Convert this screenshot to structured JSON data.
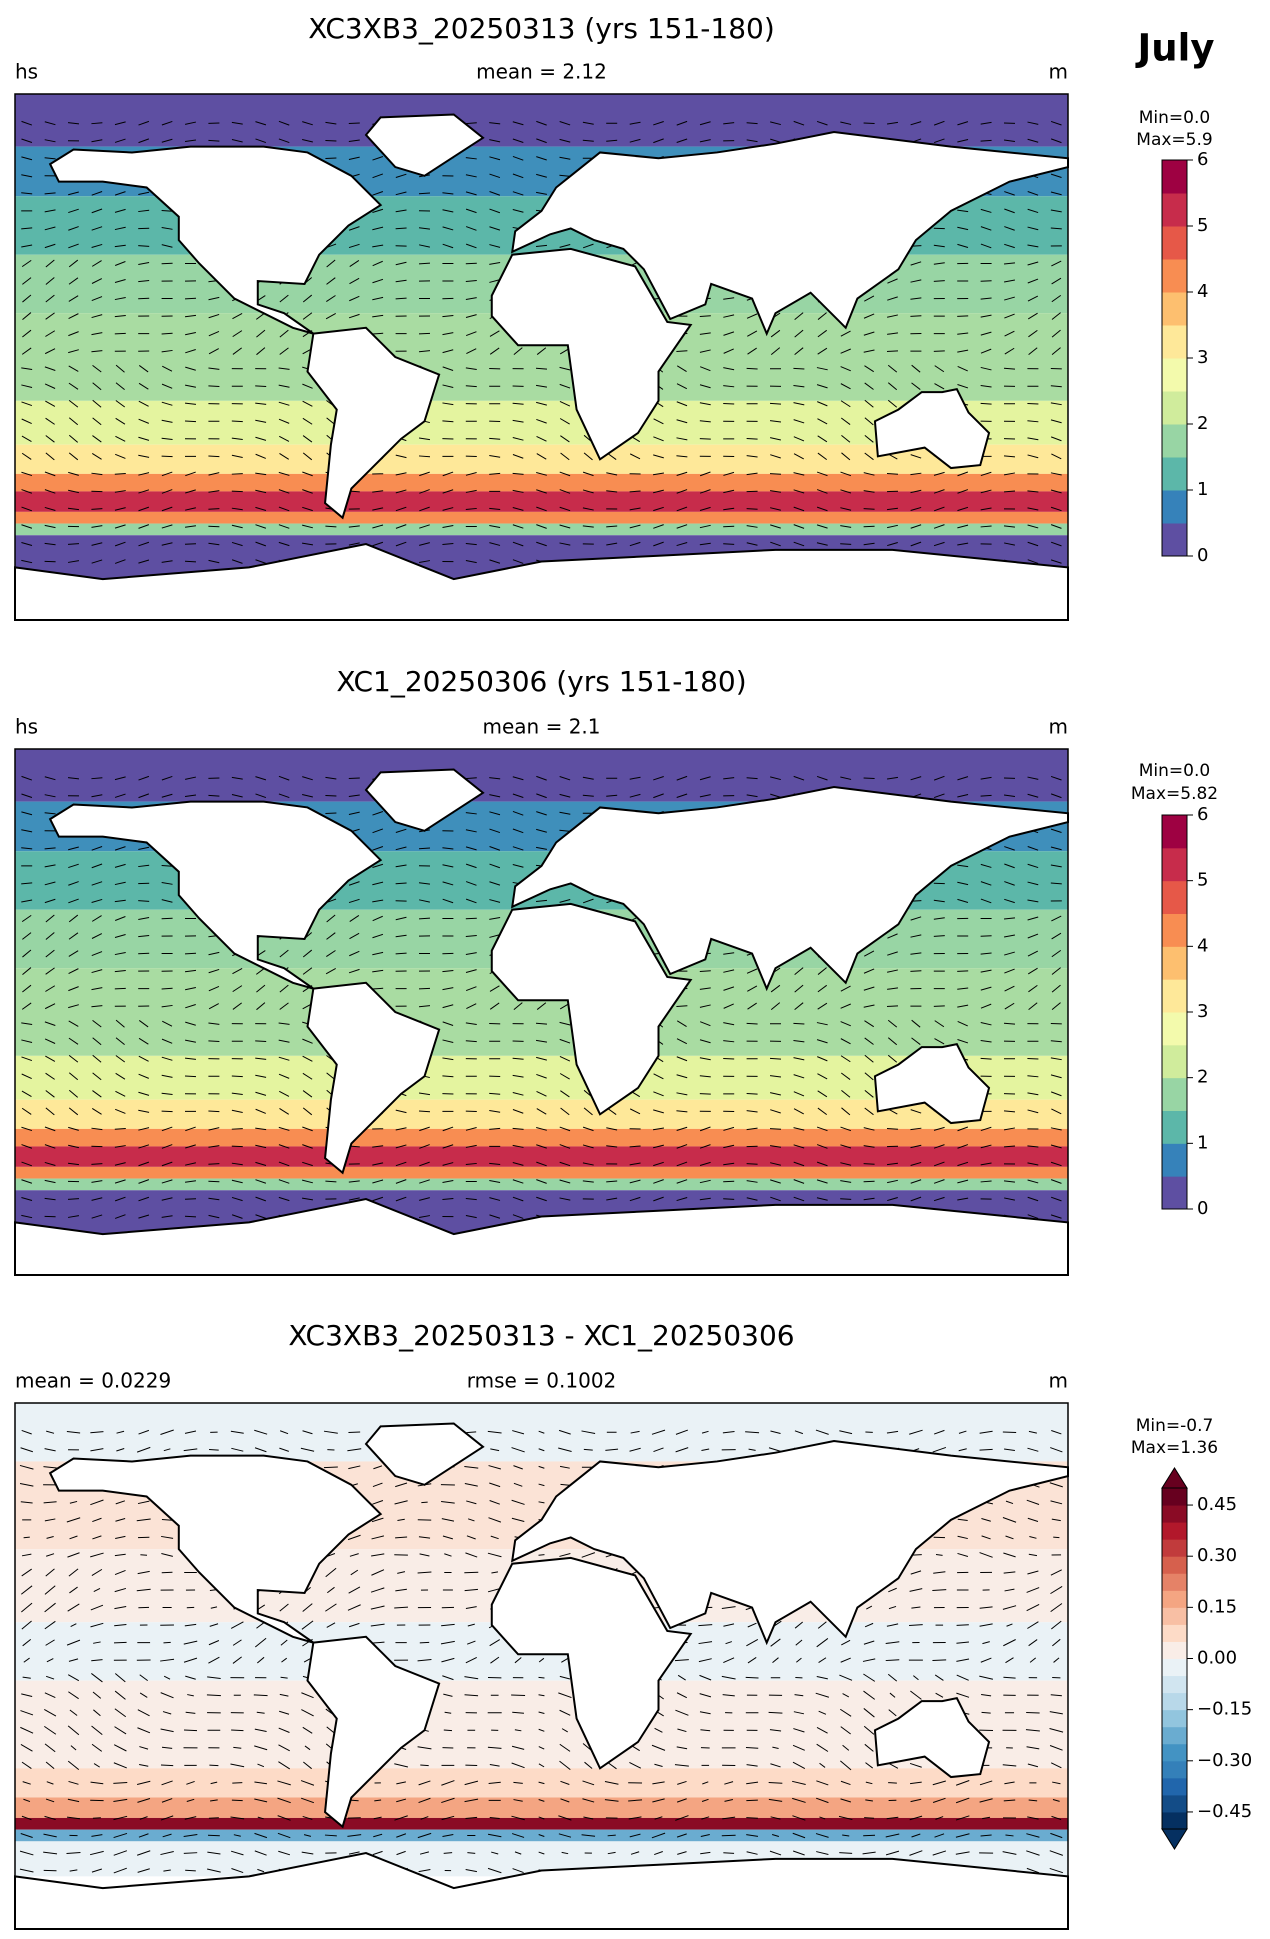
{
  "figure_title": "July",
  "chart_data": [
    {
      "type": "map",
      "title": "XC3XB3_20250313 (yrs 151-180)",
      "left_label": "hs",
      "center_label": "mean = 2.12",
      "right_label": "m",
      "colorbar": {
        "stats": [
          "Min=0.0",
          "Max=5.9"
        ],
        "clim": [
          0,
          6
        ],
        "ticks": [
          0,
          1,
          2,
          3,
          4,
          5,
          6
        ],
        "colors": [
          "#5e4fa2",
          "#3682ba",
          "#5cb7a9",
          "#98d5a4",
          "#d0ec9c",
          "#f3faac",
          "#fee899",
          "#fdbf6f",
          "#f88d52",
          "#e65848",
          "#c72c4b",
          "#9e0142"
        ]
      }
    },
    {
      "type": "map",
      "title": "XC1_20250306 (yrs 151-180)",
      "left_label": "hs",
      "center_label": "mean = 2.1",
      "right_label": "m",
      "colorbar": {
        "stats": [
          "Min=0.0",
          "Max=5.82"
        ],
        "clim": [
          0,
          6
        ],
        "ticks": [
          0,
          1,
          2,
          3,
          4,
          5,
          6
        ],
        "colors": [
          "#5e4fa2",
          "#3682ba",
          "#5cb7a9",
          "#98d5a4",
          "#d0ec9c",
          "#f3faac",
          "#fee899",
          "#fdbf6f",
          "#f88d52",
          "#e65848",
          "#c72c4b",
          "#9e0142"
        ]
      }
    },
    {
      "type": "map",
      "title": "XC3XB3_20250313 - XC1_20250306",
      "left_label": "mean = 0.0229",
      "center_label": "rmse = 0.1002",
      "right_label": "m",
      "colorbar": {
        "stats": [
          "Min=-0.7",
          "Max=1.36"
        ],
        "clim": [
          -0.5,
          0.5
        ],
        "extend": "both",
        "ticks": [
          {
            "value": -0.45,
            "label": "−0.45"
          },
          {
            "value": -0.3,
            "label": "−0.30"
          },
          {
            "value": -0.15,
            "label": "−0.15"
          },
          {
            "value": 0,
            "label": "0.00"
          },
          0.15,
          {
            "value": 0.3,
            "label": "0.30"
          },
          0.45
        ],
        "colors": [
          "#053061",
          "#134c87",
          "#2166ac",
          "#3480b9",
          "#4393c3",
          "#6aacd0",
          "#92c5de",
          "#b8d8e9",
          "#d1e5f0",
          "#eaf2f6",
          "#f9ede7",
          "#fddbc7",
          "#f8bfa4",
          "#f4a582",
          "#e58267",
          "#d6604d",
          "#c13b3c",
          "#b2182b",
          "#8a0b25",
          "#67001f"
        ]
      }
    }
  ]
}
